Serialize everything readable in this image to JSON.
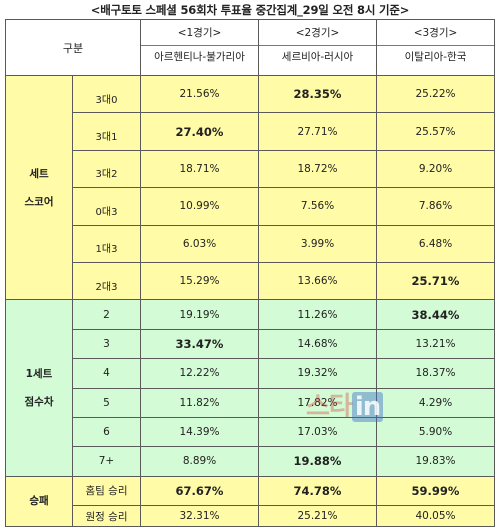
{
  "title": "<배구토토 스페셜 56회차 투표율 중간집계_29일 오전 8시 기준>",
  "header": {
    "category": "구분",
    "games": [
      {
        "num": "<1경기>",
        "teams": "아르헨티나-불가리아"
      },
      {
        "num": "<2경기>",
        "teams": "세르비아-러시아"
      },
      {
        "num": "<3경기>",
        "teams": "이탈리아-한국"
      }
    ]
  },
  "sections": [
    {
      "label_lines": [
        "세트",
        "스코어"
      ],
      "rows": [
        {
          "sub": "3대0",
          "values": [
            "21.56%",
            "28.35%",
            "25.22%"
          ],
          "bold": [
            false,
            true,
            false
          ]
        },
        {
          "sub": "3대1",
          "values": [
            "27.40%",
            "27.71%",
            "25.57%"
          ],
          "bold": [
            true,
            false,
            false
          ]
        },
        {
          "sub": "3대2",
          "values": [
            "18.71%",
            "18.72%",
            "9.20%"
          ],
          "bold": [
            false,
            false,
            false
          ]
        },
        {
          "sub": "0대3",
          "values": [
            "10.99%",
            "7.56%",
            "7.86%"
          ],
          "bold": [
            false,
            false,
            false
          ]
        },
        {
          "sub": "1대3",
          "values": [
            "6.03%",
            "3.99%",
            "6.48%"
          ],
          "bold": [
            false,
            false,
            false
          ]
        },
        {
          "sub": "2대3",
          "values": [
            "15.29%",
            "13.66%",
            "25.71%"
          ],
          "bold": [
            false,
            false,
            true
          ]
        }
      ]
    },
    {
      "label_lines": [
        "1세트",
        "점수차"
      ],
      "rows": [
        {
          "sub": "2",
          "values": [
            "19.19%",
            "11.26%",
            "38.44%"
          ],
          "bold": [
            false,
            false,
            true
          ]
        },
        {
          "sub": "3",
          "values": [
            "33.47%",
            "14.68%",
            "13.21%"
          ],
          "bold": [
            true,
            false,
            false
          ]
        },
        {
          "sub": "4",
          "values": [
            "12.22%",
            "19.32%",
            "18.37%"
          ],
          "bold": [
            false,
            false,
            false
          ]
        },
        {
          "sub": "5",
          "values": [
            "11.82%",
            "17.82%",
            "4.29%"
          ],
          "bold": [
            false,
            false,
            false
          ]
        },
        {
          "sub": "6",
          "values": [
            "14.39%",
            "17.03%",
            "5.90%"
          ],
          "bold": [
            false,
            false,
            false
          ]
        },
        {
          "sub": "7+",
          "values": [
            "8.89%",
            "19.88%",
            "19.83%"
          ],
          "bold": [
            false,
            true,
            false
          ]
        }
      ]
    },
    {
      "label_lines": [
        "승패"
      ],
      "rows": [
        {
          "sub": "홈팀 승리",
          "values": [
            "67.67%",
            "74.78%",
            "59.99%"
          ],
          "bold": [
            true,
            true,
            true
          ]
        },
        {
          "sub": "원정 승리",
          "values": [
            "32.31%",
            "25.21%",
            "40.05%"
          ],
          "bold": [
            false,
            false,
            false
          ]
        }
      ]
    }
  ],
  "watermark": {
    "text": "스타",
    "badge": "in"
  }
}
